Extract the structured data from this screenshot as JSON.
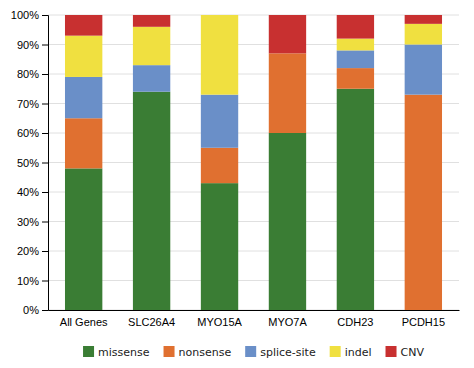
{
  "chart_data": {
    "type": "bar",
    "stacked": true,
    "categories": [
      "All Genes",
      "SLC26A4",
      "MYO15A",
      "MYO7A",
      "CDH23",
      "PCDH15"
    ],
    "series": [
      {
        "name": "missense",
        "color": "#3a7d34",
        "values": [
          48,
          74,
          43,
          60,
          75,
          0
        ]
      },
      {
        "name": "nonsense",
        "color": "#e07030",
        "values": [
          17,
          0,
          12,
          27,
          7,
          73
        ]
      },
      {
        "name": "splice-site",
        "color": "#6a8fc8",
        "values": [
          14,
          9,
          18,
          0,
          6,
          17
        ]
      },
      {
        "name": "indel",
        "color": "#f0e040",
        "values": [
          14,
          13,
          27,
          0,
          4,
          7
        ]
      },
      {
        "name": "CNV",
        "color": "#c83030",
        "values": [
          7,
          4,
          0,
          13,
          8,
          3
        ]
      }
    ],
    "ylim": [
      0,
      100
    ],
    "yticks": [
      {
        "value": 0,
        "label": "0%"
      },
      {
        "value": 10,
        "label": "10%"
      },
      {
        "value": 20,
        "label": "20%"
      },
      {
        "value": 30,
        "label": "30%"
      },
      {
        "value": 40,
        "label": "40%"
      },
      {
        "value": 50,
        "label": "50%"
      },
      {
        "value": 60,
        "label": "60%"
      },
      {
        "value": 70,
        "label": "70%"
      },
      {
        "value": 80,
        "label": "80%"
      },
      {
        "value": 90,
        "label": "90%"
      },
      {
        "value": 100,
        "label": "100%"
      }
    ],
    "grid": true,
    "legend": "bottom"
  }
}
